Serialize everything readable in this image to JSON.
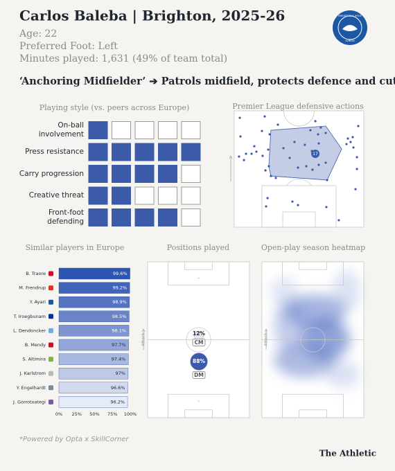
{
  "header": {
    "title": "Carlos Baleba | Brighton, 2025-26",
    "age": "Age: 22",
    "foot": "Preferred Foot: Left",
    "minutes": "Minutes played: 1,631 (49% of team total)",
    "badge": {
      "top": "BRIGHTON & HOVE",
      "bottom": "ALBION"
    }
  },
  "role": "‘Anchoring Midfielder’ ➔ Patrols midfield, protects defence and cuts out attacks",
  "playing_style": {
    "title": "Playing style (vs. peers across Europe)",
    "scale_max": 5,
    "color": "#3b5aa8",
    "rows": [
      {
        "label": "On-ball involvement",
        "value": 1
      },
      {
        "label": "Press resistance",
        "value": 5
      },
      {
        "label": "Carry progression",
        "value": 4
      },
      {
        "label": "Creative threat",
        "value": 2
      },
      {
        "label": "Front-foot defending",
        "value": 4
      }
    ]
  },
  "defensive_actions": {
    "title": "Premier League defensive actions",
    "color": "#3b5aa8",
    "points": {
      "x": [
        4.3,
        4.8,
        3.7,
        7.5,
        9.1,
        13.4,
        17.1,
        23.5,
        21.4,
        27.3,
        26.2,
        21.9,
        26.7,
        24.1,
        28.3,
        32.1,
        25.7,
        24.6,
        44.9,
        49.2,
        71.7,
        71.1,
        80.7,
        86.6,
        87.7,
        89.8,
        92.0,
        94.7,
        94.7,
        91.4,
        95.7,
        93.6,
        70.6,
        64.7,
        58.8,
        65.2,
        59.9,
        54.5,
        46.5,
        38.0,
        42.8,
        49.2,
        55.6,
        60.4,
        65.2,
        70.6,
        62.6,
        66.8,
        33.7,
        15.5
      ],
      "y": [
        6.0,
        22.0,
        39.3,
        42.3,
        36.9,
        36.9,
        35.1,
        4.8,
        17.3,
        20.2,
        33.3,
        38.7,
        47.6,
        51.2,
        56.0,
        57.7,
        75.0,
        82.1,
        78.0,
        81.0,
        59.5,
        82.7,
        94.0,
        28.6,
        23.8,
        26.8,
        31.5,
        39.9,
        50.0,
        22.6,
        13.1,
        67.3,
        19.0,
        20.2,
        16.7,
        28.0,
        34.5,
        29.2,
        26.8,
        32.1,
        40.5,
        48.8,
        47.6,
        50.6,
        46.4,
        44.6,
        8.9,
        14.3,
        11.9,
        30.4
      ]
    },
    "hull": {
      "x": [
        28.3,
        70.6,
        82.9,
        71.7,
        28.3,
        26.7
      ],
      "y": [
        16.7,
        13.1,
        32.7,
        59.5,
        56.0,
        47.6
      ]
    },
    "average": {
      "x": 62.6,
      "y": 36.9,
      "label": "17"
    }
  },
  "similar_players": {
    "title": "Similar players in Europe",
    "categories": [
      "B. Traore",
      "M. Frendrup",
      "Y. Ayari",
      "T. Iroegbunam",
      "L. Dendoncker",
      "B. Mendy",
      "S. Altimira",
      "J. Karlstrom",
      "Y. Engelhardt",
      "J. Gorrotxategi"
    ],
    "values": [
      99.6,
      99.2,
      98.9,
      98.5,
      98.1,
      97.7,
      97.4,
      97,
      96.6,
      96.2
    ],
    "value_labels": [
      "99.6%",
      "99.2%",
      "98.9%",
      "98.5%",
      "98.1%",
      "97.7%",
      "97.4%",
      "97%",
      "96.6%",
      "96.2%"
    ],
    "colors": [
      "#2d55b3",
      "#4163b8",
      "#5573bf",
      "#6a84c7",
      "#7e95cf",
      "#93a6d7",
      "#a8b8df",
      "#bdc9e7",
      "#d1daef",
      "#e6ecf7"
    ],
    "xlim": [
      0,
      100
    ],
    "xticks": [
      {
        "value": 0,
        "label": "0%"
      },
      {
        "value": 25,
        "label": "25%"
      },
      {
        "value": 50,
        "label": "50%"
      },
      {
        "value": 75,
        "label": "75%"
      },
      {
        "value": 100,
        "label": "100%"
      }
    ]
  },
  "positions": {
    "title": "Positions played",
    "attack_label": "Attack",
    "items": [
      {
        "label": "CM",
        "value": 12,
        "value_label": "12%",
        "color": "#e4e7ee"
      },
      {
        "label": "DM",
        "value": 88,
        "value_label": "88%",
        "color": "#3b5aa8"
      }
    ]
  },
  "heatmap": {
    "title": "Open-play season heatmap",
    "attack_label": "Attack"
  },
  "footer": {
    "source": "*Powered by Opta x SkillCorner",
    "brand": "The Athletic"
  }
}
